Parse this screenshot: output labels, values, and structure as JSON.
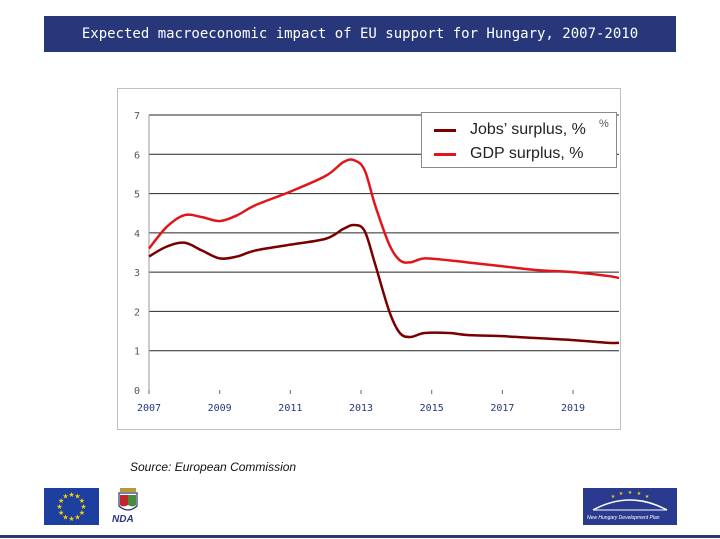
{
  "header": {
    "title": "Expected macroeconomic impact of EU support for Hungary, 2007-2010"
  },
  "source": "Source: European Commission",
  "legend": {
    "stray_mark": "%"
  },
  "logos": {
    "nda": "NDA",
    "nhdp": "New Hungary Development Plan"
  },
  "colors": {
    "header_bg": "#27377a",
    "jobs": "#7a0000",
    "gdp": "#e0161b",
    "eu_blue": "#1d3fa0",
    "eu_star": "#f5d000"
  },
  "chart_data": {
    "type": "line",
    "title": "",
    "xlabel": "",
    "ylabel": "",
    "xlim": [
      2007,
      2020.3
    ],
    "ylim": [
      0,
      7
    ],
    "yticks": [
      "0",
      "1",
      "2",
      "3",
      "4",
      "5",
      "6",
      "7"
    ],
    "xticks": [
      "2007",
      "2009",
      "2011",
      "2013",
      "2015",
      "2017",
      "2019"
    ],
    "grid": true,
    "legend_position": "top-right",
    "series": [
      {
        "name": "Jobs’ surplus, %",
        "color": "#7a0000",
        "x": [
          2007,
          2007.5,
          2008,
          2008.5,
          2009,
          2009.5,
          2010,
          2011,
          2012,
          2012.5,
          2012.8,
          2013.1,
          2013.4,
          2013.8,
          2014.1,
          2014.4,
          2014.8,
          2015.5,
          2016,
          2017,
          2018,
          2019,
          2020,
          2020.3
        ],
        "values": [
          3.4,
          3.65,
          3.75,
          3.55,
          3.35,
          3.4,
          3.55,
          3.7,
          3.85,
          4.1,
          4.2,
          4.05,
          3.2,
          2.0,
          1.45,
          1.35,
          1.45,
          1.45,
          1.4,
          1.37,
          1.32,
          1.27,
          1.2,
          1.2
        ]
      },
      {
        "name": "GDP surplus, %",
        "color": "#e0161b",
        "x": [
          2007,
          2007.5,
          2008,
          2008.5,
          2009,
          2009.5,
          2010,
          2011,
          2012,
          2012.5,
          2012.8,
          2013.1,
          2013.4,
          2013.8,
          2014.1,
          2014.4,
          2014.8,
          2015.5,
          2016,
          2017,
          2018,
          2019,
          2020,
          2020.3
        ],
        "values": [
          3.6,
          4.15,
          4.45,
          4.4,
          4.3,
          4.45,
          4.7,
          5.05,
          5.45,
          5.8,
          5.85,
          5.6,
          4.7,
          3.7,
          3.3,
          3.25,
          3.35,
          3.3,
          3.25,
          3.15,
          3.05,
          3.0,
          2.9,
          2.85
        ]
      }
    ]
  }
}
